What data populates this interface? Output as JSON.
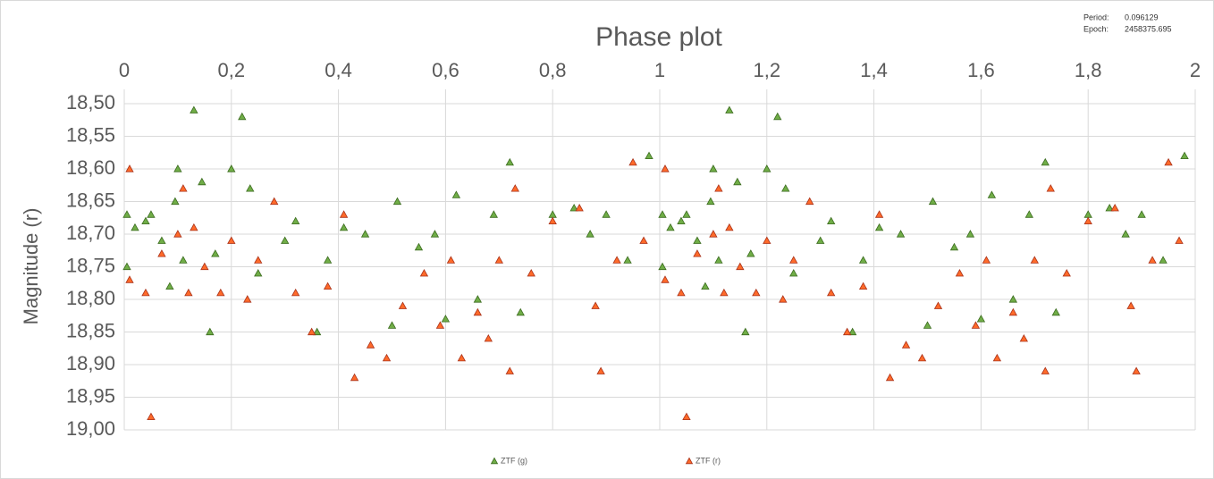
{
  "chart_data": {
    "type": "scatter",
    "title": "Phase plot",
    "y_label": "Magnitude (r)",
    "info": [
      {
        "label": "Period:",
        "value": "0.096129"
      },
      {
        "label": "Epoch:",
        "value": "2458375.695"
      }
    ],
    "xlim": [
      0,
      2
    ],
    "xticks": [
      0,
      {
        "value": 0.2,
        "label": "0,2"
      },
      {
        "value": 0.4,
        "label": "0,4"
      },
      {
        "value": 0.6,
        "label": "0,6"
      },
      {
        "value": 0.8,
        "label": "0,8"
      },
      1,
      {
        "value": 1.2,
        "label": "1,2"
      },
      {
        "value": 1.4,
        "label": "1,4"
      },
      {
        "value": 1.6,
        "label": "1,6"
      },
      {
        "value": 1.8,
        "label": "1,8"
      },
      2
    ],
    "ylim": [
      18.5,
      19.0
    ],
    "y_inverted": true,
    "yticks": [
      {
        "value": 18.5,
        "label": "18,50"
      },
      {
        "value": 18.55,
        "label": "18,55"
      },
      {
        "value": 18.6,
        "label": "18,60"
      },
      {
        "value": 18.65,
        "label": "18,65"
      },
      {
        "value": 18.7,
        "label": "18,70"
      },
      {
        "value": 18.75,
        "label": "18,75"
      },
      {
        "value": 18.8,
        "label": "18,80"
      },
      {
        "value": 18.85,
        "label": "18,85"
      },
      {
        "value": 18.9,
        "label": "18,90"
      },
      {
        "value": 18.95,
        "label": "18,95"
      },
      {
        "value": 19.0,
        "label": "19,00"
      }
    ],
    "grid": true,
    "series": [
      {
        "name": "ZTF (g)",
        "color": "#70ad47",
        "stroke": "#3b6b1f",
        "x": [
          0.005,
          0.005,
          0.02,
          0.04,
          0.05,
          0.07,
          0.085,
          0.095,
          0.1,
          0.11,
          0.13,
          0.145,
          0.16,
          0.17,
          0.2,
          0.22,
          0.235,
          0.25,
          0.3,
          0.32,
          0.36,
          0.38,
          0.41,
          0.45,
          0.5,
          0.51,
          0.55,
          0.58,
          0.6,
          0.62,
          0.66,
          0.69,
          0.72,
          0.74,
          0.8,
          0.84,
          0.87,
          0.9,
          0.94,
          0.98,
          1.005,
          1.005,
          1.02,
          1.04,
          1.05,
          1.07,
          1.085,
          1.095,
          1.1,
          1.11,
          1.13,
          1.145,
          1.16,
          1.17,
          1.2,
          1.22,
          1.235,
          1.25,
          1.3,
          1.32,
          1.36,
          1.38,
          1.41,
          1.45,
          1.5,
          1.51,
          1.55,
          1.58,
          1.6,
          1.62,
          1.66,
          1.69,
          1.72,
          1.74,
          1.8,
          1.84,
          1.87,
          1.9,
          1.94,
          1.98
        ],
        "values": [
          18.67,
          18.75,
          18.69,
          18.68,
          18.67,
          18.71,
          18.78,
          18.65,
          18.6,
          18.74,
          18.51,
          18.62,
          18.85,
          18.73,
          18.6,
          18.52,
          18.63,
          18.76,
          18.71,
          18.68,
          18.85,
          18.74,
          18.69,
          18.7,
          18.84,
          18.65,
          18.72,
          18.7,
          18.83,
          18.64,
          18.8,
          18.67,
          18.59,
          18.82,
          18.67,
          18.66,
          18.7,
          18.67,
          18.74,
          18.58,
          18.67,
          18.75,
          18.69,
          18.68,
          18.67,
          18.71,
          18.78,
          18.65,
          18.6,
          18.74,
          18.51,
          18.62,
          18.85,
          18.73,
          18.6,
          18.52,
          18.63,
          18.76,
          18.71,
          18.68,
          18.85,
          18.74,
          18.69,
          18.7,
          18.84,
          18.65,
          18.72,
          18.7,
          18.83,
          18.64,
          18.8,
          18.67,
          18.59,
          18.82,
          18.67,
          18.66,
          18.7,
          18.67,
          18.74,
          18.58
        ]
      },
      {
        "name": "ZTF (r)",
        "color": "#ff6a2a",
        "stroke": "#a8321a",
        "x": [
          0.01,
          0.01,
          0.04,
          0.05,
          0.07,
          0.1,
          0.11,
          0.12,
          0.13,
          0.15,
          0.18,
          0.2,
          0.23,
          0.25,
          0.28,
          0.32,
          0.35,
          0.38,
          0.41,
          0.43,
          0.46,
          0.49,
          0.52,
          0.56,
          0.59,
          0.61,
          0.63,
          0.66,
          0.68,
          0.7,
          0.72,
          0.73,
          0.76,
          0.8,
          0.85,
          0.88,
          0.89,
          0.92,
          0.95,
          0.97,
          1.01,
          1.01,
          1.04,
          1.05,
          1.07,
          1.1,
          1.11,
          1.12,
          1.13,
          1.15,
          1.18,
          1.2,
          1.23,
          1.25,
          1.28,
          1.32,
          1.35,
          1.38,
          1.41,
          1.43,
          1.46,
          1.49,
          1.52,
          1.56,
          1.59,
          1.61,
          1.63,
          1.66,
          1.68,
          1.7,
          1.72,
          1.73,
          1.76,
          1.8,
          1.85,
          1.88,
          1.89,
          1.92,
          1.95,
          1.97
        ],
        "values": [
          18.6,
          18.77,
          18.79,
          18.98,
          18.73,
          18.7,
          18.63,
          18.79,
          18.69,
          18.75,
          18.79,
          18.71,
          18.8,
          18.74,
          18.65,
          18.79,
          18.85,
          18.78,
          18.67,
          18.92,
          18.87,
          18.89,
          18.81,
          18.76,
          18.84,
          18.74,
          18.89,
          18.82,
          18.86,
          18.74,
          18.91,
          18.63,
          18.76,
          18.68,
          18.66,
          18.81,
          18.91,
          18.74,
          18.59,
          18.71,
          18.6,
          18.77,
          18.79,
          18.98,
          18.73,
          18.7,
          18.63,
          18.79,
          18.69,
          18.75,
          18.79,
          18.71,
          18.8,
          18.74,
          18.65,
          18.79,
          18.85,
          18.78,
          18.67,
          18.92,
          18.87,
          18.89,
          18.81,
          18.76,
          18.84,
          18.74,
          18.89,
          18.82,
          18.86,
          18.74,
          18.91,
          18.63,
          18.76,
          18.68,
          18.66,
          18.81,
          18.91,
          18.74,
          18.59,
          18.71
        ]
      }
    ]
  }
}
